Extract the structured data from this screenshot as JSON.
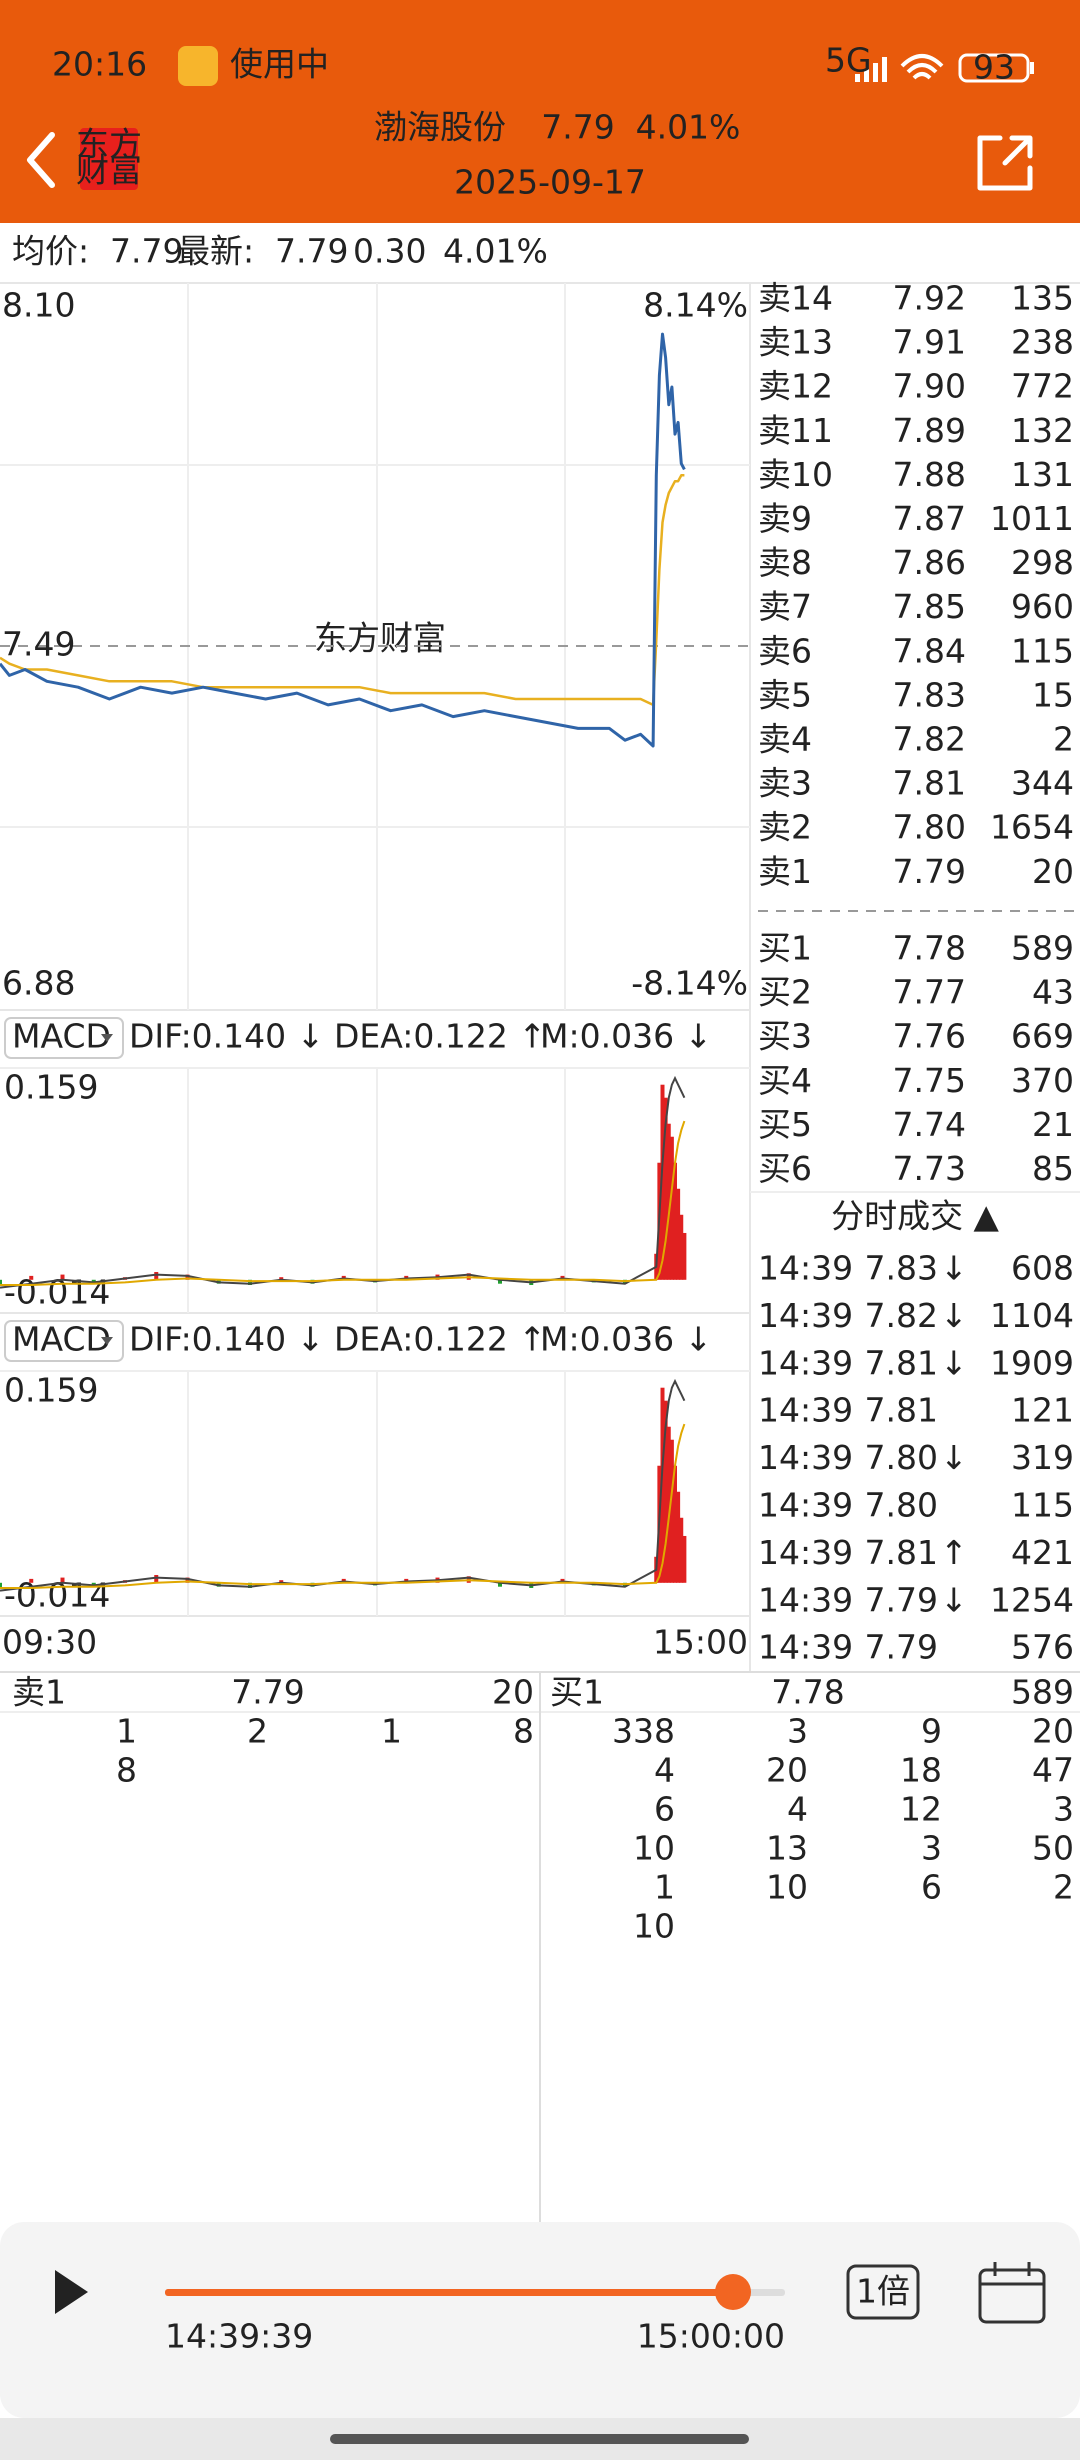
{
  "status_bar": {
    "time": "20:16",
    "app_status": "使用中",
    "network": "5G",
    "battery": "93"
  },
  "header": {
    "name": "渤海股份",
    "price": "7.79",
    "change_pct": "4.01%",
    "date": "2025-09-17",
    "logo_top": "东方",
    "logo_bottom": "财富"
  },
  "info": {
    "avg_label": "均价:",
    "avg": "7.79",
    "latest_label": "最新:",
    "latest": "7.79",
    "change": "0.30",
    "change_pct": "4.01%"
  },
  "watermark": "东方财富",
  "chart_data": {
    "type": "line",
    "x": [
      0,
      3,
      8,
      15,
      25,
      35,
      45,
      55,
      65,
      75,
      85,
      95,
      105,
      115,
      125,
      135,
      145,
      155,
      165,
      175,
      185,
      195,
      200,
      205,
      209,
      210,
      211,
      212,
      213,
      214,
      215,
      216,
      217,
      218,
      219
    ],
    "series": [
      {
        "name": "最新",
        "color": "#2f64a8",
        "values": [
          7.46,
          7.44,
          7.45,
          7.43,
          7.42,
          7.4,
          7.42,
          7.41,
          7.42,
          7.41,
          7.4,
          7.41,
          7.39,
          7.4,
          7.38,
          7.39,
          7.37,
          7.38,
          7.37,
          7.36,
          7.35,
          7.35,
          7.33,
          7.34,
          7.32,
          7.78,
          7.95,
          8.02,
          7.98,
          7.9,
          7.93,
          7.85,
          7.87,
          7.8,
          7.79
        ]
      },
      {
        "name": "均价",
        "color": "#e8b020",
        "values": [
          7.47,
          7.46,
          7.45,
          7.45,
          7.44,
          7.43,
          7.43,
          7.43,
          7.42,
          7.42,
          7.42,
          7.42,
          7.42,
          7.42,
          7.41,
          7.41,
          7.41,
          7.41,
          7.4,
          7.4,
          7.4,
          7.4,
          7.4,
          7.4,
          7.39,
          7.5,
          7.62,
          7.7,
          7.73,
          7.75,
          7.76,
          7.77,
          7.77,
          7.78,
          7.78
        ]
      }
    ],
    "xlim": [
      0,
      240
    ],
    "xticks": [
      {
        "value": 0,
        "label": "09:30"
      },
      {
        "value": 240,
        "label": "15:00"
      }
    ],
    "ylim": [
      6.88,
      8.1
    ],
    "yticks": [
      {
        "value": 8.1,
        "label": "8.10"
      },
      {
        "value": 7.49,
        "label": "7.49"
      },
      {
        "value": 6.88,
        "label": "6.88"
      }
    ],
    "y2lim": [
      -8.14,
      8.14
    ],
    "y2ticks": [
      {
        "value": 8.14,
        "label": "8.14%"
      },
      {
        "value": -8.14,
        "label": "-8.14%"
      }
    ],
    "grid": true
  },
  "macd": {
    "indicator": "MACD",
    "dif_label": "DIF:0.140 ↓",
    "dea_label": "DEA:0.122 ↑",
    "m_label": "M:0.036 ↓",
    "ylim": [
      -0.014,
      0.159
    ],
    "yticks": [
      0.159,
      -0.014
    ],
    "x": [
      0,
      10,
      20,
      30,
      40,
      50,
      60,
      70,
      80,
      90,
      100,
      110,
      120,
      130,
      140,
      150,
      160,
      170,
      180,
      190,
      200,
      210,
      211,
      212,
      213,
      214,
      215,
      216,
      217,
      218,
      219
    ],
    "histogram": [
      -0.004,
      0.003,
      0.004,
      -0.003,
      0.002,
      0.006,
      0.004,
      -0.003,
      -0.004,
      0.002,
      -0.003,
      0.003,
      -0.002,
      0.003,
      0.004,
      0.005,
      -0.003,
      -0.004,
      0.003,
      -0.002,
      -0.003,
      0.02,
      0.09,
      0.15,
      0.14,
      0.12,
      0.11,
      0.09,
      0.07,
      0.05,
      0.036
    ],
    "dif": [
      -0.006,
      -0.003,
      0.0,
      -0.002,
      0.001,
      0.004,
      0.003,
      -0.002,
      -0.003,
      0.0,
      -0.002,
      0.001,
      -0.001,
      0.001,
      0.002,
      0.004,
      0.0,
      -0.002,
      0.001,
      -0.001,
      -0.003,
      0.01,
      0.05,
      0.09,
      0.12,
      0.14,
      0.15,
      0.155,
      0.15,
      0.145,
      0.14
    ],
    "dea": [
      -0.004,
      -0.004,
      -0.003,
      -0.003,
      -0.002,
      0.0,
      0.001,
      0.0,
      -0.001,
      -0.001,
      -0.001,
      0.0,
      0.0,
      0.0,
      0.001,
      0.002,
      0.001,
      0.0,
      0.0,
      0.0,
      -0.001,
      0.0,
      0.005,
      0.015,
      0.03,
      0.05,
      0.07,
      0.09,
      0.105,
      0.115,
      0.122
    ]
  },
  "order_book": {
    "asks": [
      {
        "label": "卖14",
        "price": "7.92",
        "volume": "135"
      },
      {
        "label": "卖13",
        "price": "7.91",
        "volume": "238"
      },
      {
        "label": "卖12",
        "price": "7.90",
        "volume": "772"
      },
      {
        "label": "卖11",
        "price": "7.89",
        "volume": "132"
      },
      {
        "label": "卖10",
        "price": "7.88",
        "volume": "131"
      },
      {
        "label": "卖9",
        "price": "7.87",
        "volume": "1011"
      },
      {
        "label": "卖8",
        "price": "7.86",
        "volume": "298"
      },
      {
        "label": "卖7",
        "price": "7.85",
        "volume": "960"
      },
      {
        "label": "卖6",
        "price": "7.84",
        "volume": "115"
      },
      {
        "label": "卖5",
        "price": "7.83",
        "volume": "15"
      },
      {
        "label": "卖4",
        "price": "7.82",
        "volume": "2"
      },
      {
        "label": "卖3",
        "price": "7.81",
        "volume": "344"
      },
      {
        "label": "卖2",
        "price": "7.80",
        "volume": "1654"
      },
      {
        "label": "卖1",
        "price": "7.79",
        "volume": "20"
      }
    ],
    "bids": [
      {
        "label": "买1",
        "price": "7.78",
        "volume": "589"
      },
      {
        "label": "买2",
        "price": "7.77",
        "volume": "43"
      },
      {
        "label": "买3",
        "price": "7.76",
        "volume": "669"
      },
      {
        "label": "买4",
        "price": "7.75",
        "volume": "370"
      },
      {
        "label": "买5",
        "price": "7.74",
        "volume": "21"
      },
      {
        "label": "买6",
        "price": "7.73",
        "volume": "85"
      }
    ]
  },
  "trades": {
    "title": "分时成交 ▲",
    "rows": [
      {
        "time": "14:39",
        "price": "7.83",
        "arrow": "↓",
        "volume": "608",
        "color": "#1a9a2c"
      },
      {
        "time": "14:39",
        "price": "7.82",
        "arrow": "↓",
        "volume": "1104",
        "color": "#1a9a2c"
      },
      {
        "time": "14:39",
        "price": "7.81",
        "arrow": "↓",
        "volume": "1909",
        "color": "#1a9a2c"
      },
      {
        "time": "14:39",
        "price": "7.81",
        "volume": "121",
        "color": "#1a9a2c"
      },
      {
        "time": "14:39",
        "price": "7.80",
        "arrow": "↓",
        "volume": "319",
        "color": "#1a9a2c"
      },
      {
        "time": "14:39",
        "price": "7.80",
        "volume": "115",
        "color": "#1a9a2c"
      },
      {
        "time": "14:39",
        "price": "7.81",
        "arrow": "↑",
        "volume": "421",
        "color": "#d6222a"
      },
      {
        "time": "14:39",
        "price": "7.79",
        "arrow": "↓",
        "volume": "1254",
        "color": "#1a9a2c"
      },
      {
        "time": "14:39",
        "price": "7.79",
        "volume": "576",
        "color": "#1a9a2c"
      }
    ]
  },
  "queue": {
    "ask": {
      "label": "卖1",
      "price": "7.79",
      "volume": "20",
      "orders": [
        [
          "1",
          "2",
          "1",
          "8"
        ],
        [
          "8"
        ]
      ]
    },
    "bid": {
      "label": "买1",
      "price": "7.78",
      "volume": "589",
      "orders": [
        [
          "338",
          "3",
          "9",
          "20"
        ],
        [
          "4",
          "20",
          "18",
          "47"
        ],
        [
          "6",
          "4",
          "12",
          "3"
        ],
        [
          "10",
          "13",
          "3",
          "50"
        ],
        [
          "1",
          "10",
          "6",
          "2"
        ],
        [
          "10"
        ]
      ]
    }
  },
  "player": {
    "current_time": "14:39:39",
    "end_time": "15:00:00",
    "speed": "1倍"
  }
}
